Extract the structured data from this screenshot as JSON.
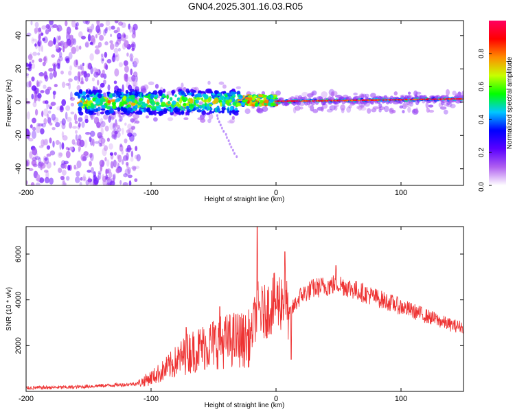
{
  "title": "GN04.2025.301.16.03.R05",
  "chart_data": [
    {
      "type": "heatmap",
      "name": "spectrogram",
      "xlabel": "Height of straight line (km)",
      "ylabel": "Frequency (Hz)",
      "xlim": [
        -200,
        150
      ],
      "ylim": [
        -50,
        49
      ],
      "xticks": [
        -200,
        -100,
        0,
        100
      ],
      "yticks": [
        -40,
        -20,
        0,
        20,
        40
      ],
      "colorbar": {
        "label": "Normalized spectral amplitude",
        "range": [
          0.0,
          1.0
        ],
        "ticks": [
          0.0,
          0.2,
          0.4,
          0.6,
          0.8
        ],
        "tick_labels": [
          "0.0",
          "0.2",
          "0.4",
          "0.6",
          "0.8"
        ],
        "colormap": [
          "#ffffff",
          "#b060f0",
          "#5a00ff",
          "#0000ff",
          "#00c8ff",
          "#00ff00",
          "#c8ff00",
          "#ff8c00",
          "#ff0000",
          "#ff0060"
        ]
      },
      "regions": [
        {
          "x_range": [
            -200,
            -110
          ],
          "freq_range": [
            -50,
            49
          ],
          "amplitude": 0.15,
          "description_value": "diffuse noise"
        },
        {
          "x_range": [
            -160,
            -30
          ],
          "freq_range": [
            -8,
            8
          ],
          "amplitude": 0.45
        },
        {
          "x_range": [
            -30,
            0
          ],
          "freq_range": [
            -3,
            5
          ],
          "amplitude": 0.75
        },
        {
          "x_range": [
            0,
            150
          ],
          "freq_range": [
            -2,
            3
          ],
          "amplitude": 0.9
        }
      ]
    },
    {
      "type": "line",
      "name": "snr",
      "xlabel": "Height of straight line (km)",
      "ylabel": "SNR (10 * v/v)",
      "xlim": [
        -200,
        150
      ],
      "ylim": [
        0,
        7200
      ],
      "xticks": [
        -200,
        -100,
        0,
        100
      ],
      "yticks": [
        2000,
        4000,
        6000
      ],
      "series": [
        {
          "name": "SNR",
          "color": "#ee3333",
          "x": [
            -200,
            -180,
            -160,
            -140,
            -120,
            -110,
            -100,
            -90,
            -80,
            -70,
            -60,
            -50,
            -40,
            -30,
            -25,
            -20,
            -17,
            -15,
            -10,
            -5,
            0,
            5,
            7,
            10,
            13,
            20,
            30,
            40,
            50,
            60,
            70,
            80,
            90,
            100,
            110,
            120,
            130,
            140,
            150
          ],
          "y": [
            150,
            170,
            190,
            250,
            300,
            350,
            600,
            900,
            1300,
            1700,
            1900,
            2100,
            2200,
            2300,
            2200,
            2400,
            3200,
            3600,
            3400,
            3700,
            3900,
            4000,
            4100,
            3300,
            3600,
            4200,
            4500,
            4600,
            4700,
            4500,
            4300,
            4100,
            3900,
            3700,
            3500,
            3300,
            3100,
            2900,
            2800
          ],
          "spikes": [
            {
              "x": -15,
              "y": 7200
            },
            {
              "x": 7,
              "y": 6100
            },
            {
              "x": 12,
              "y": 1400
            },
            {
              "x": 48,
              "y": 5500
            },
            {
              "x": -45,
              "y": 3700
            },
            {
              "x": -72,
              "y": 2800
            }
          ]
        }
      ]
    }
  ]
}
